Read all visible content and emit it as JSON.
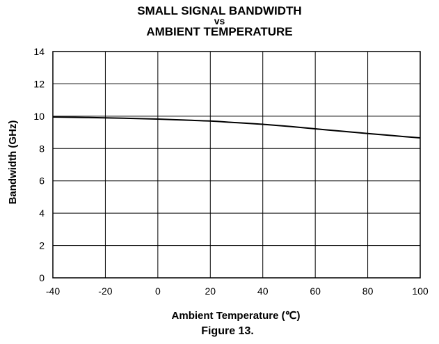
{
  "chart_data": {
    "type": "line",
    "title_lines": [
      "SMALL SIGNAL BANDWIDTH",
      "vs",
      "AMBIENT TEMPERATURE"
    ],
    "xlabel": "Ambient Temperature (℃)",
    "ylabel": "Bandwidth (GHz)",
    "caption": "Figure 13.",
    "xlim": [
      -40,
      100
    ],
    "ylim": [
      0,
      14
    ],
    "x_ticks": [
      -40,
      -20,
      0,
      20,
      40,
      60,
      80,
      100
    ],
    "y_ticks": [
      0,
      2,
      4,
      6,
      8,
      10,
      12,
      14
    ],
    "grid": true,
    "series": [
      {
        "color": "#000000",
        "x": [
          -40,
          -20,
          0,
          10,
          20,
          30,
          40,
          50,
          60,
          70,
          80,
          90,
          100
        ],
        "y": [
          9.95,
          9.9,
          9.82,
          9.76,
          9.7,
          9.6,
          9.5,
          9.37,
          9.22,
          9.07,
          8.93,
          8.79,
          8.66
        ]
      }
    ]
  }
}
